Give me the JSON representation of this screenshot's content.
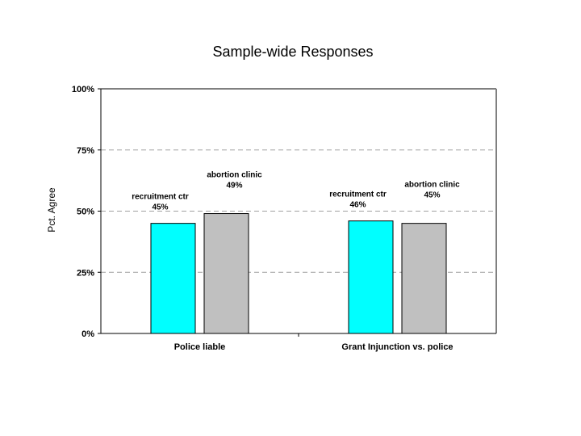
{
  "chart_data": {
    "type": "bar",
    "title": "Sample-wide Responses",
    "xlabel": "",
    "ylabel": "Pct. Agree",
    "categories": [
      "Police liable",
      "Grant Injunction vs. police"
    ],
    "series": [
      {
        "name": "recruitment ctr",
        "color": "#00ffff",
        "values": [
          45,
          46
        ]
      },
      {
        "name": "abortion clinic",
        "color": "#c0c0c0",
        "values": [
          49,
          45
        ]
      }
    ],
    "data_labels": [
      [
        "recruitment ctr",
        "45%",
        "recruitment ctr",
        "46%"
      ],
      [
        "abortion clinic",
        "49%",
        "abortion clinic",
        "45%"
      ]
    ],
    "yticks": [
      "0%",
      "25%",
      "50%",
      "75%",
      "100%"
    ],
    "ylim": [
      0,
      100
    ],
    "grid": true,
    "legend": "none",
    "plot_border_color": "#808080",
    "gridline_color": "#a0a0a0"
  }
}
